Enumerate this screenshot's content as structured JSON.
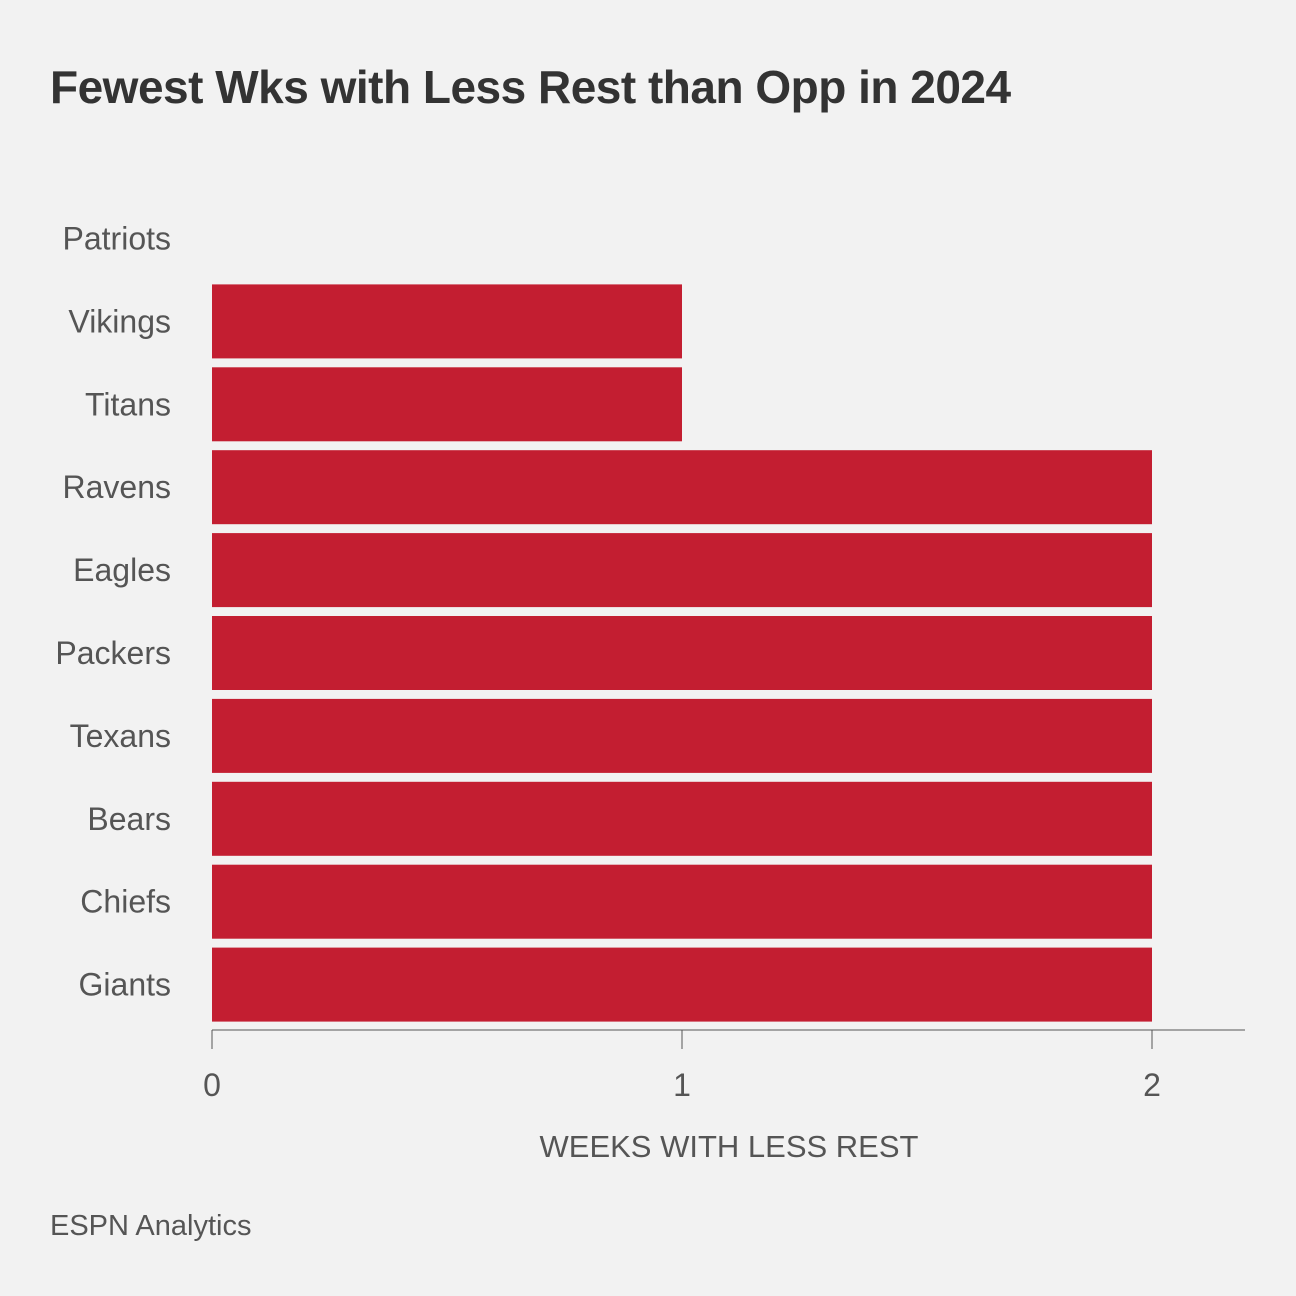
{
  "header": {
    "title": "Fewest Wks with Less Rest than Opp in 2024"
  },
  "footer": {
    "source": "ESPN Analytics"
  },
  "colors": {
    "background": "#f2f2f2",
    "bar": "#c31e31",
    "text": "#333333",
    "muted_text": "#555555",
    "axis": "#555555"
  },
  "chart_data": {
    "type": "bar",
    "orientation": "horizontal",
    "categories": [
      "Patriots",
      "Vikings",
      "Titans",
      "Ravens",
      "Eagles",
      "Packers",
      "Texans",
      "Bears",
      "Chiefs",
      "Giants"
    ],
    "values": [
      0,
      1,
      1,
      2,
      2,
      2,
      2,
      2,
      2,
      2
    ],
    "xlabel": "WEEKS WITH LESS REST",
    "ylabel": "",
    "xlim": [
      0,
      2.2
    ],
    "xticks": [
      "0",
      "1",
      "2"
    ],
    "grid": false,
    "legend": "none"
  }
}
